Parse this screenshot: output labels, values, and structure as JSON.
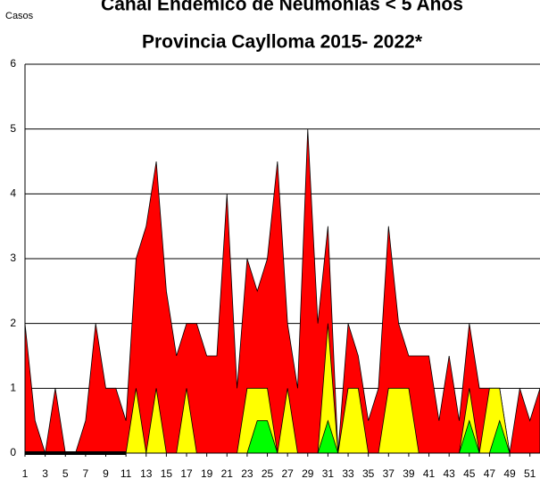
{
  "chart_data": {
    "type": "area",
    "title": "Canal Endémico de Neumonías < 5 Años",
    "subtitle": "Provincia Caylloma 2015- 2022*",
    "y_label": "Casos",
    "x": [
      1,
      2,
      3,
      4,
      5,
      6,
      7,
      8,
      9,
      10,
      11,
      12,
      13,
      14,
      15,
      16,
      17,
      18,
      19,
      20,
      21,
      22,
      23,
      24,
      25,
      26,
      27,
      28,
      29,
      30,
      31,
      32,
      33,
      34,
      35,
      36,
      37,
      38,
      39,
      40,
      41,
      42,
      43,
      44,
      45,
      46,
      47,
      48,
      49,
      50,
      51,
      52
    ],
    "xlim": [
      1,
      52
    ],
    "xticks": [
      1,
      3,
      5,
      7,
      9,
      11,
      13,
      15,
      17,
      19,
      21,
      23,
      25,
      27,
      29,
      31,
      33,
      35,
      37,
      39,
      41,
      43,
      45,
      47,
      49,
      51
    ],
    "ylim": [
      0,
      6
    ],
    "yticks": [
      0,
      1,
      2,
      3,
      4,
      5,
      6
    ],
    "grid": true,
    "series": [
      {
        "color": "#ff0000",
        "values": [
          2,
          0.5,
          0,
          1,
          0,
          0,
          0.5,
          2,
          1,
          1,
          0.5,
          3,
          3.5,
          4.5,
          2.5,
          1.5,
          2,
          2,
          1.5,
          1.5,
          4,
          1,
          3,
          2.5,
          3,
          4.5,
          2,
          1,
          5,
          2,
          3.5,
          0,
          2,
          1.5,
          0.5,
          1,
          3.5,
          2,
          1.5,
          1.5,
          1.5,
          0.5,
          1.5,
          0.5,
          2,
          1,
          1,
          1,
          0,
          1,
          0.5,
          1
        ]
      },
      {
        "color": "#ffff00",
        "values": [
          0,
          0,
          0,
          0,
          0,
          0,
          0,
          0,
          0,
          0,
          0,
          1,
          0,
          1,
          0,
          0,
          1,
          0,
          0,
          0,
          0,
          0,
          1,
          1,
          1,
          0,
          1,
          0,
          0,
          0,
          2,
          0,
          1,
          1,
          0,
          0,
          1,
          1,
          1,
          0,
          0,
          0,
          0,
          0,
          1,
          0,
          1,
          1,
          0,
          0,
          0,
          0
        ]
      },
      {
        "color": "#00ff00",
        "values": [
          0,
          0,
          0,
          0,
          0,
          0,
          0,
          0,
          0,
          0,
          0,
          0,
          0,
          0,
          0,
          0,
          0,
          0,
          0,
          0,
          0,
          0,
          0,
          0.5,
          0.5,
          0,
          0,
          0,
          0,
          0,
          0.5,
          0,
          0,
          0,
          0,
          0,
          0,
          0,
          0,
          0,
          0,
          0,
          0,
          0,
          0.5,
          0,
          0,
          0.5,
          0,
          0,
          0,
          0
        ]
      },
      {
        "type": "line",
        "color": "#000000",
        "values": [
          0,
          0,
          0,
          0,
          0,
          0,
          0,
          0,
          0,
          0,
          0,
          null,
          null,
          null,
          null,
          null,
          null,
          null,
          null,
          null,
          null,
          null,
          null,
          null,
          null,
          null,
          null,
          null,
          null,
          null,
          null,
          null,
          null,
          null,
          null,
          null,
          null,
          null,
          null,
          null,
          null,
          null,
          null,
          null,
          null,
          null,
          null,
          null,
          null,
          null,
          null,
          null
        ]
      }
    ]
  }
}
